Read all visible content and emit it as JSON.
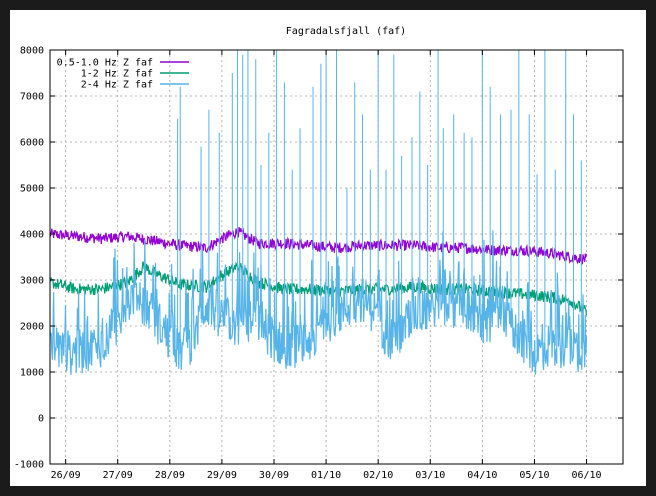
{
  "chart_data": {
    "type": "line",
    "title": "Fagradalsfjall (faf)",
    "xlabel": "",
    "ylabel": "",
    "ylim": [
      -1000,
      8000
    ],
    "yticks": [
      -1000,
      0,
      1000,
      2000,
      3000,
      4000,
      5000,
      6000,
      7000,
      8000
    ],
    "xlim": [
      0,
      11
    ],
    "xticks": [
      {
        "x": 0.3,
        "label": "26/09"
      },
      {
        "x": 1.3,
        "label": "27/09"
      },
      {
        "x": 2.3,
        "label": "28/09"
      },
      {
        "x": 3.3,
        "label": "29/09"
      },
      {
        "x": 4.3,
        "label": "30/09"
      },
      {
        "x": 5.3,
        "label": "01/10"
      },
      {
        "x": 6.3,
        "label": "02/10"
      },
      {
        "x": 7.3,
        "label": "03/10"
      },
      {
        "x": 8.3,
        "label": "04/10"
      },
      {
        "x": 9.3,
        "label": "05/10"
      },
      {
        "x": 10.3,
        "label": "06/10"
      }
    ],
    "grid": true,
    "legend_position": "top-left",
    "series": [
      {
        "name": "0.5-1.0 Hz Z faf",
        "color": "#9400d3",
        "base": [
          [
            0,
            4000
          ],
          [
            0.5,
            3950
          ],
          [
            1,
            3900
          ],
          [
            1.5,
            3950
          ],
          [
            2,
            3850
          ],
          [
            2.5,
            3750
          ],
          [
            3,
            3700
          ],
          [
            3.3,
            3900
          ],
          [
            3.6,
            4050
          ],
          [
            4,
            3800
          ],
          [
            4.5,
            3800
          ],
          [
            5,
            3750
          ],
          [
            5.5,
            3700
          ],
          [
            6,
            3750
          ],
          [
            6.5,
            3750
          ],
          [
            7,
            3750
          ],
          [
            7.5,
            3700
          ],
          [
            8,
            3700
          ],
          [
            8.5,
            3650
          ],
          [
            9,
            3650
          ],
          [
            9.5,
            3600
          ],
          [
            10,
            3500
          ],
          [
            10.3,
            3450
          ]
        ],
        "noise": 120,
        "spikes": []
      },
      {
        "name": "1-2 Hz Z faf",
        "color": "#009e73",
        "base": [
          [
            0,
            2950
          ],
          [
            0.5,
            2800
          ],
          [
            1,
            2800
          ],
          [
            1.5,
            2950
          ],
          [
            1.8,
            3300
          ],
          [
            2,
            3150
          ],
          [
            2.5,
            2900
          ],
          [
            3,
            2850
          ],
          [
            3.3,
            3100
          ],
          [
            3.6,
            3300
          ],
          [
            4,
            2950
          ],
          [
            4.5,
            2800
          ],
          [
            5,
            2800
          ],
          [
            5.5,
            2750
          ],
          [
            6,
            2800
          ],
          [
            6.5,
            2800
          ],
          [
            7,
            2850
          ],
          [
            7.5,
            2800
          ],
          [
            8,
            2800
          ],
          [
            8.5,
            2750
          ],
          [
            9,
            2700
          ],
          [
            9.5,
            2650
          ],
          [
            10,
            2550
          ],
          [
            10.3,
            2300
          ]
        ],
        "noise": 130,
        "spikes": []
      },
      {
        "name": "2-4 Hz Z faf",
        "color": "#56b4e9",
        "base": [
          [
            0,
            1500
          ],
          [
            0.5,
            1400
          ],
          [
            1,
            1600
          ],
          [
            1.3,
            2100
          ],
          [
            1.6,
            2700
          ],
          [
            2,
            2200
          ],
          [
            2.5,
            1400
          ],
          [
            2.8,
            1800
          ],
          [
            3,
            2500
          ],
          [
            3.3,
            2200
          ],
          [
            3.6,
            2000
          ],
          [
            4,
            2100
          ],
          [
            4.3,
            1700
          ],
          [
            4.6,
            1500
          ],
          [
            5,
            1700
          ],
          [
            5.3,
            2100
          ],
          [
            5.7,
            2400
          ],
          [
            6,
            2600
          ],
          [
            6.3,
            2200
          ],
          [
            6.5,
            1700
          ],
          [
            6.7,
            1800
          ],
          [
            7,
            2300
          ],
          [
            7.5,
            2500
          ],
          [
            8,
            2400
          ],
          [
            8.3,
            2000
          ],
          [
            8.6,
            2300
          ],
          [
            9,
            1800
          ],
          [
            9.3,
            1400
          ],
          [
            9.6,
            1600
          ],
          [
            10,
            1500
          ],
          [
            10.3,
            1500
          ]
        ],
        "noise": 500,
        "spikes": [
          [
            2.45,
            6500
          ],
          [
            2.5,
            7200
          ],
          [
            2.9,
            5900
          ],
          [
            3.05,
            6700
          ],
          [
            3.25,
            6200
          ],
          [
            3.5,
            7500
          ],
          [
            3.6,
            8000
          ],
          [
            3.7,
            7900
          ],
          [
            3.8,
            8000
          ],
          [
            3.95,
            7800
          ],
          [
            4.05,
            5500
          ],
          [
            4.2,
            6200
          ],
          [
            4.35,
            8000
          ],
          [
            4.5,
            7300
          ],
          [
            4.65,
            5400
          ],
          [
            4.8,
            6300
          ],
          [
            5.05,
            7200
          ],
          [
            5.2,
            7700
          ],
          [
            5.3,
            8000
          ],
          [
            5.5,
            8000
          ],
          [
            5.7,
            5000
          ],
          [
            5.85,
            7300
          ],
          [
            6.0,
            6600
          ],
          [
            6.15,
            5400
          ],
          [
            6.3,
            8000
          ],
          [
            6.45,
            5400
          ],
          [
            6.6,
            7900
          ],
          [
            6.75,
            5700
          ],
          [
            6.95,
            6100
          ],
          [
            7.1,
            7100
          ],
          [
            7.25,
            5500
          ],
          [
            7.45,
            8000
          ],
          [
            7.55,
            6300
          ],
          [
            7.75,
            6600
          ],
          [
            7.95,
            6200
          ],
          [
            8.1,
            6100
          ],
          [
            8.3,
            8000
          ],
          [
            8.45,
            7200
          ],
          [
            8.65,
            6600
          ],
          [
            8.85,
            6700
          ],
          [
            9.0,
            8000
          ],
          [
            9.2,
            6600
          ],
          [
            9.35,
            5300
          ],
          [
            9.5,
            8000
          ],
          [
            9.7,
            5400
          ],
          [
            9.9,
            8000
          ],
          [
            10.05,
            6600
          ],
          [
            10.2,
            5600
          ]
        ]
      }
    ]
  }
}
